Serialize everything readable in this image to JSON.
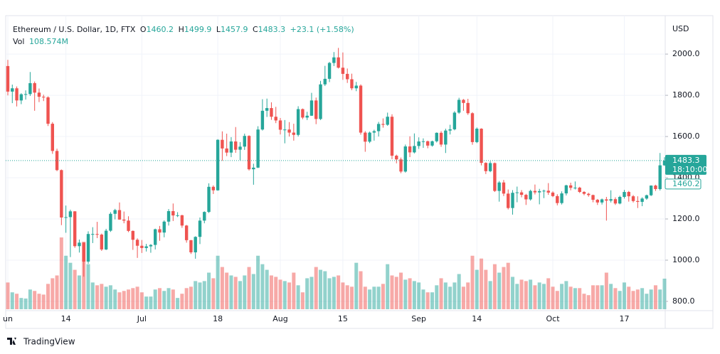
{
  "chart_data": {
    "type": "candlestick",
    "legend": {
      "symbol": "Ethereum / U.S. Dollar, 1D, FTX",
      "o": "O",
      "h": "H",
      "l": "L",
      "c": "C",
      "change": "+23.1 (+1.58%)",
      "vol": "Vol",
      "vol_value": "108.574M"
    },
    "currency": "USD",
    "countdown": "18:10:00",
    "footer": "TradingView",
    "up_color": "#26a69a",
    "down_color": "#ef5350",
    "grid": true,
    "ylim": [
      762,
      2159
    ],
    "yticks": [
      {
        "value": 800,
        "label": "800.0"
      },
      {
        "value": 1000,
        "label": "1000.0"
      },
      {
        "value": 1200,
        "label": "1200.0"
      },
      {
        "value": 1400,
        "label": "1400.0"
      },
      {
        "value": 1600,
        "label": "1600.0"
      },
      {
        "value": 1800,
        "label": "1800.0"
      },
      {
        "value": 2000,
        "label": "2000.0"
      }
    ],
    "categories": [
      "un",
      null,
      null,
      null,
      null,
      null,
      null,
      null,
      null,
      null,
      null,
      null,
      null,
      "14",
      null,
      null,
      null,
      null,
      null,
      null,
      null,
      null,
      null,
      null,
      null,
      null,
      null,
      null,
      null,
      null,
      "Jul",
      null,
      null,
      null,
      null,
      null,
      null,
      null,
      null,
      null,
      null,
      null,
      null,
      null,
      null,
      null,
      null,
      "18",
      null,
      null,
      null,
      null,
      null,
      null,
      null,
      null,
      null,
      null,
      null,
      null,
      null,
      "Aug",
      null,
      null,
      null,
      null,
      null,
      null,
      null,
      null,
      null,
      null,
      null,
      null,
      null,
      "15",
      null,
      null,
      null,
      null,
      null,
      null,
      null,
      null,
      null,
      null,
      null,
      null,
      null,
      null,
      null,
      null,
      "Sep",
      null,
      null,
      null,
      null,
      null,
      null,
      null,
      null,
      null,
      null,
      null,
      null,
      "14",
      null,
      null,
      null,
      null,
      null,
      null,
      null,
      null,
      null,
      null,
      null,
      null,
      null,
      null,
      null,
      null,
      "Oct",
      null,
      null,
      null,
      null,
      null,
      null,
      null,
      null,
      null,
      null,
      null,
      null,
      null,
      null,
      null,
      "17",
      null,
      null,
      null,
      null,
      null,
      null,
      null,
      null,
      null
    ],
    "open": [
      1942,
      1818,
      1834,
      1775,
      1805,
      1806,
      1859,
      1813,
      1793,
      1790,
      1662,
      1530,
      1437,
      1207,
      1209,
      1237,
      1068,
      1085,
      993,
      1127,
      1127,
      1124,
      1052,
      1143,
      1225,
      1243,
      1197,
      1192,
      1142,
      1099,
      1070,
      1059,
      1067,
      1074,
      1150,
      1134,
      1187,
      1238,
      1217,
      1218,
      1168,
      1097,
      1038,
      1113,
      1192,
      1234,
      1356,
      1339,
      1584,
      1542,
      1522,
      1576,
      1536,
      1551,
      1603,
      1441,
      1449,
      1634,
      1725,
      1738,
      1696,
      1678,
      1633,
      1634,
      1619,
      1608,
      1733,
      1692,
      1701,
      1775,
      1685,
      1853,
      1880,
      1957,
      1984,
      1934,
      1904,
      1878,
      1834,
      1847,
      1619,
      1575,
      1619,
      1626,
      1661,
      1657,
      1696,
      1507,
      1489,
      1430,
      1552,
      1523,
      1554,
      1576,
      1577,
      1556,
      1577,
      1618,
      1561,
      1629,
      1635,
      1716,
      1778,
      1763,
      1713,
      1573,
      1638,
      1472,
      1432,
      1471,
      1336,
      1377,
      1323,
      1253,
      1327,
      1329,
      1317,
      1295,
      1336,
      1329,
      1335,
      1337,
      1328,
      1311,
      1277,
      1324,
      1363,
      1351,
      1352,
      1331,
      1322,
      1316,
      1293,
      1280,
      1295,
      1289,
      1296,
      1275,
      1307,
      1331,
      1310,
      1287,
      1283,
      1299,
      1315,
      1362,
      1345,
      1460.2
    ],
    "high": [
      1972,
      1852,
      1843,
      1810,
      1824,
      1913,
      1867,
      1833,
      1803,
      1795,
      1670,
      1541,
      1440,
      1265,
      1245,
      1238,
      1100,
      1086,
      1140,
      1160,
      1186,
      1129,
      1152,
      1233,
      1249,
      1280,
      1236,
      1213,
      1144,
      1106,
      1098,
      1079,
      1078,
      1153,
      1166,
      1193,
      1248,
      1275,
      1233,
      1220,
      1171,
      1098,
      1116,
      1207,
      1237,
      1373,
      1363,
      1587,
      1625,
      1614,
      1597,
      1646,
      1573,
      1614,
      1606,
      1468,
      1650,
      1781,
      1784,
      1766,
      1744,
      1690,
      1680,
      1670,
      1662,
      1747,
      1736,
      1720,
      1812,
      1789,
      1870,
      1943,
      1962,
      2010,
      2030,
      2008,
      1930,
      1905,
      1865,
      1853,
      1626,
      1624,
      1633,
      1671,
      1688,
      1716,
      1708,
      1512,
      1498,
      1561,
      1601,
      1615,
      1596,
      1591,
      1580,
      1580,
      1620,
      1626,
      1638,
      1657,
      1723,
      1788,
      1782,
      1783,
      1718,
      1644,
      1640,
      1475,
      1480,
      1474,
      1384,
      1389,
      1343,
      1340,
      1357,
      1340,
      1322,
      1342,
      1367,
      1346,
      1342,
      1374,
      1334,
      1320,
      1334,
      1366,
      1376,
      1382,
      1356,
      1335,
      1327,
      1318,
      1297,
      1299,
      1307,
      1339,
      1305,
      1313,
      1341,
      1336,
      1316,
      1310,
      1305,
      1318,
      1363,
      1366,
      1520,
      1499.9
    ],
    "low": [
      1800,
      1762,
      1746,
      1757,
      1779,
      1797,
      1725,
      1767,
      1772,
      1651,
      1516,
      1432,
      1170,
      1133,
      1015,
      1060,
      1037,
      920,
      983,
      1083,
      1107,
      1045,
      1049,
      1137,
      1198,
      1196,
      1179,
      1136,
      1050,
      1011,
      1035,
      1042,
      1036,
      1052,
      1094,
      1111,
      1168,
      1190,
      1209,
      1157,
      1085,
      1030,
      1007,
      1078,
      1179,
      1229,
      1321,
      1337,
      1482,
      1505,
      1500,
      1521,
      1485,
      1535,
      1435,
      1366,
      1447,
      1629,
      1695,
      1681,
      1665,
      1610,
      1567,
      1600,
      1580,
      1600,
      1684,
      1680,
      1700,
      1660,
      1680,
      1845,
      1864,
      1942,
      1930,
      1875,
      1860,
      1825,
      1820,
      1609,
      1526,
      1568,
      1580,
      1600,
      1643,
      1652,
      1490,
      1470,
      1422,
      1425,
      1500,
      1518,
      1540,
      1545,
      1543,
      1551,
      1571,
      1550,
      1520,
      1610,
      1630,
      1710,
      1725,
      1705,
      1560,
      1568,
      1460,
      1418,
      1427,
      1331,
      1284,
      1311,
      1246,
      1221,
      1281,
      1305,
      1268,
      1289,
      1319,
      1271,
      1301,
      1317,
      1306,
      1266,
      1270,
      1314,
      1339,
      1343,
      1326,
      1315,
      1308,
      1281,
      1268,
      1270,
      1192,
      1280,
      1268,
      1271,
      1299,
      1284,
      1280,
      1253,
      1262,
      1293,
      1311,
      1336,
      1338,
      1457.9
    ],
    "close": [
      1818,
      1834,
      1775,
      1805,
      1806,
      1859,
      1813,
      1793,
      1790,
      1662,
      1530,
      1437,
      1207,
      1209,
      1237,
      1068,
      1085,
      993,
      1127,
      1127,
      1124,
      1052,
      1143,
      1225,
      1243,
      1197,
      1192,
      1142,
      1099,
      1070,
      1059,
      1067,
      1074,
      1150,
      1134,
      1187,
      1238,
      1217,
      1218,
      1168,
      1097,
      1038,
      1113,
      1192,
      1234,
      1356,
      1339,
      1584,
      1542,
      1522,
      1576,
      1536,
      1551,
      1603,
      1441,
      1449,
      1634,
      1725,
      1738,
      1696,
      1678,
      1633,
      1634,
      1619,
      1608,
      1733,
      1692,
      1701,
      1775,
      1685,
      1853,
      1880,
      1957,
      1984,
      1934,
      1904,
      1878,
      1834,
      1847,
      1619,
      1575,
      1619,
      1626,
      1661,
      1657,
      1696,
      1507,
      1489,
      1430,
      1552,
      1523,
      1554,
      1576,
      1577,
      1556,
      1577,
      1618,
      1561,
      1629,
      1635,
      1716,
      1778,
      1763,
      1713,
      1573,
      1638,
      1472,
      1432,
      1471,
      1336,
      1377,
      1323,
      1253,
      1327,
      1329,
      1317,
      1295,
      1336,
      1329,
      1335,
      1337,
      1328,
      1311,
      1277,
      1324,
      1363,
      1351,
      1352,
      1331,
      1322,
      1316,
      1293,
      1280,
      1295,
      1289,
      1296,
      1275,
      1307,
      1331,
      1310,
      1287,
      1283,
      1299,
      1315,
      1362,
      1345,
      1460.2,
      1483.3
    ],
    "volume": [
      95,
      60,
      55,
      40,
      38,
      70,
      65,
      55,
      52,
      90,
      110,
      120,
      255,
      190,
      165,
      140,
      120,
      240,
      160,
      95,
      85,
      90,
      80,
      85,
      70,
      60,
      65,
      70,
      75,
      80,
      60,
      45,
      45,
      70,
      75,
      65,
      75,
      70,
      40,
      55,
      75,
      80,
      100,
      95,
      100,
      130,
      110,
      190,
      150,
      130,
      120,
      115,
      100,
      120,
      150,
      125,
      190,
      160,
      140,
      120,
      115,
      105,
      100,
      95,
      130,
      85,
      60,
      110,
      115,
      150,
      140,
      135,
      110,
      115,
      120,
      95,
      85,
      80,
      165,
      135,
      80,
      70,
      80,
      80,
      90,
      160,
      120,
      115,
      130,
      105,
      110,
      100,
      95,
      70,
      60,
      60,
      85,
      110,
      95,
      80,
      95,
      125,
      80,
      95,
      190,
      140,
      180,
      140,
      100,
      160,
      130,
      150,
      165,
      115,
      90,
      105,
      100,
      105,
      85,
      95,
      90,
      110,
      80,
      65,
      90,
      100,
      80,
      75,
      75,
      55,
      50,
      85,
      85,
      85,
      130,
      90,
      75,
      65,
      95,
      80,
      65,
      70,
      75,
      55,
      70,
      85,
      70,
      108.574
    ]
  }
}
